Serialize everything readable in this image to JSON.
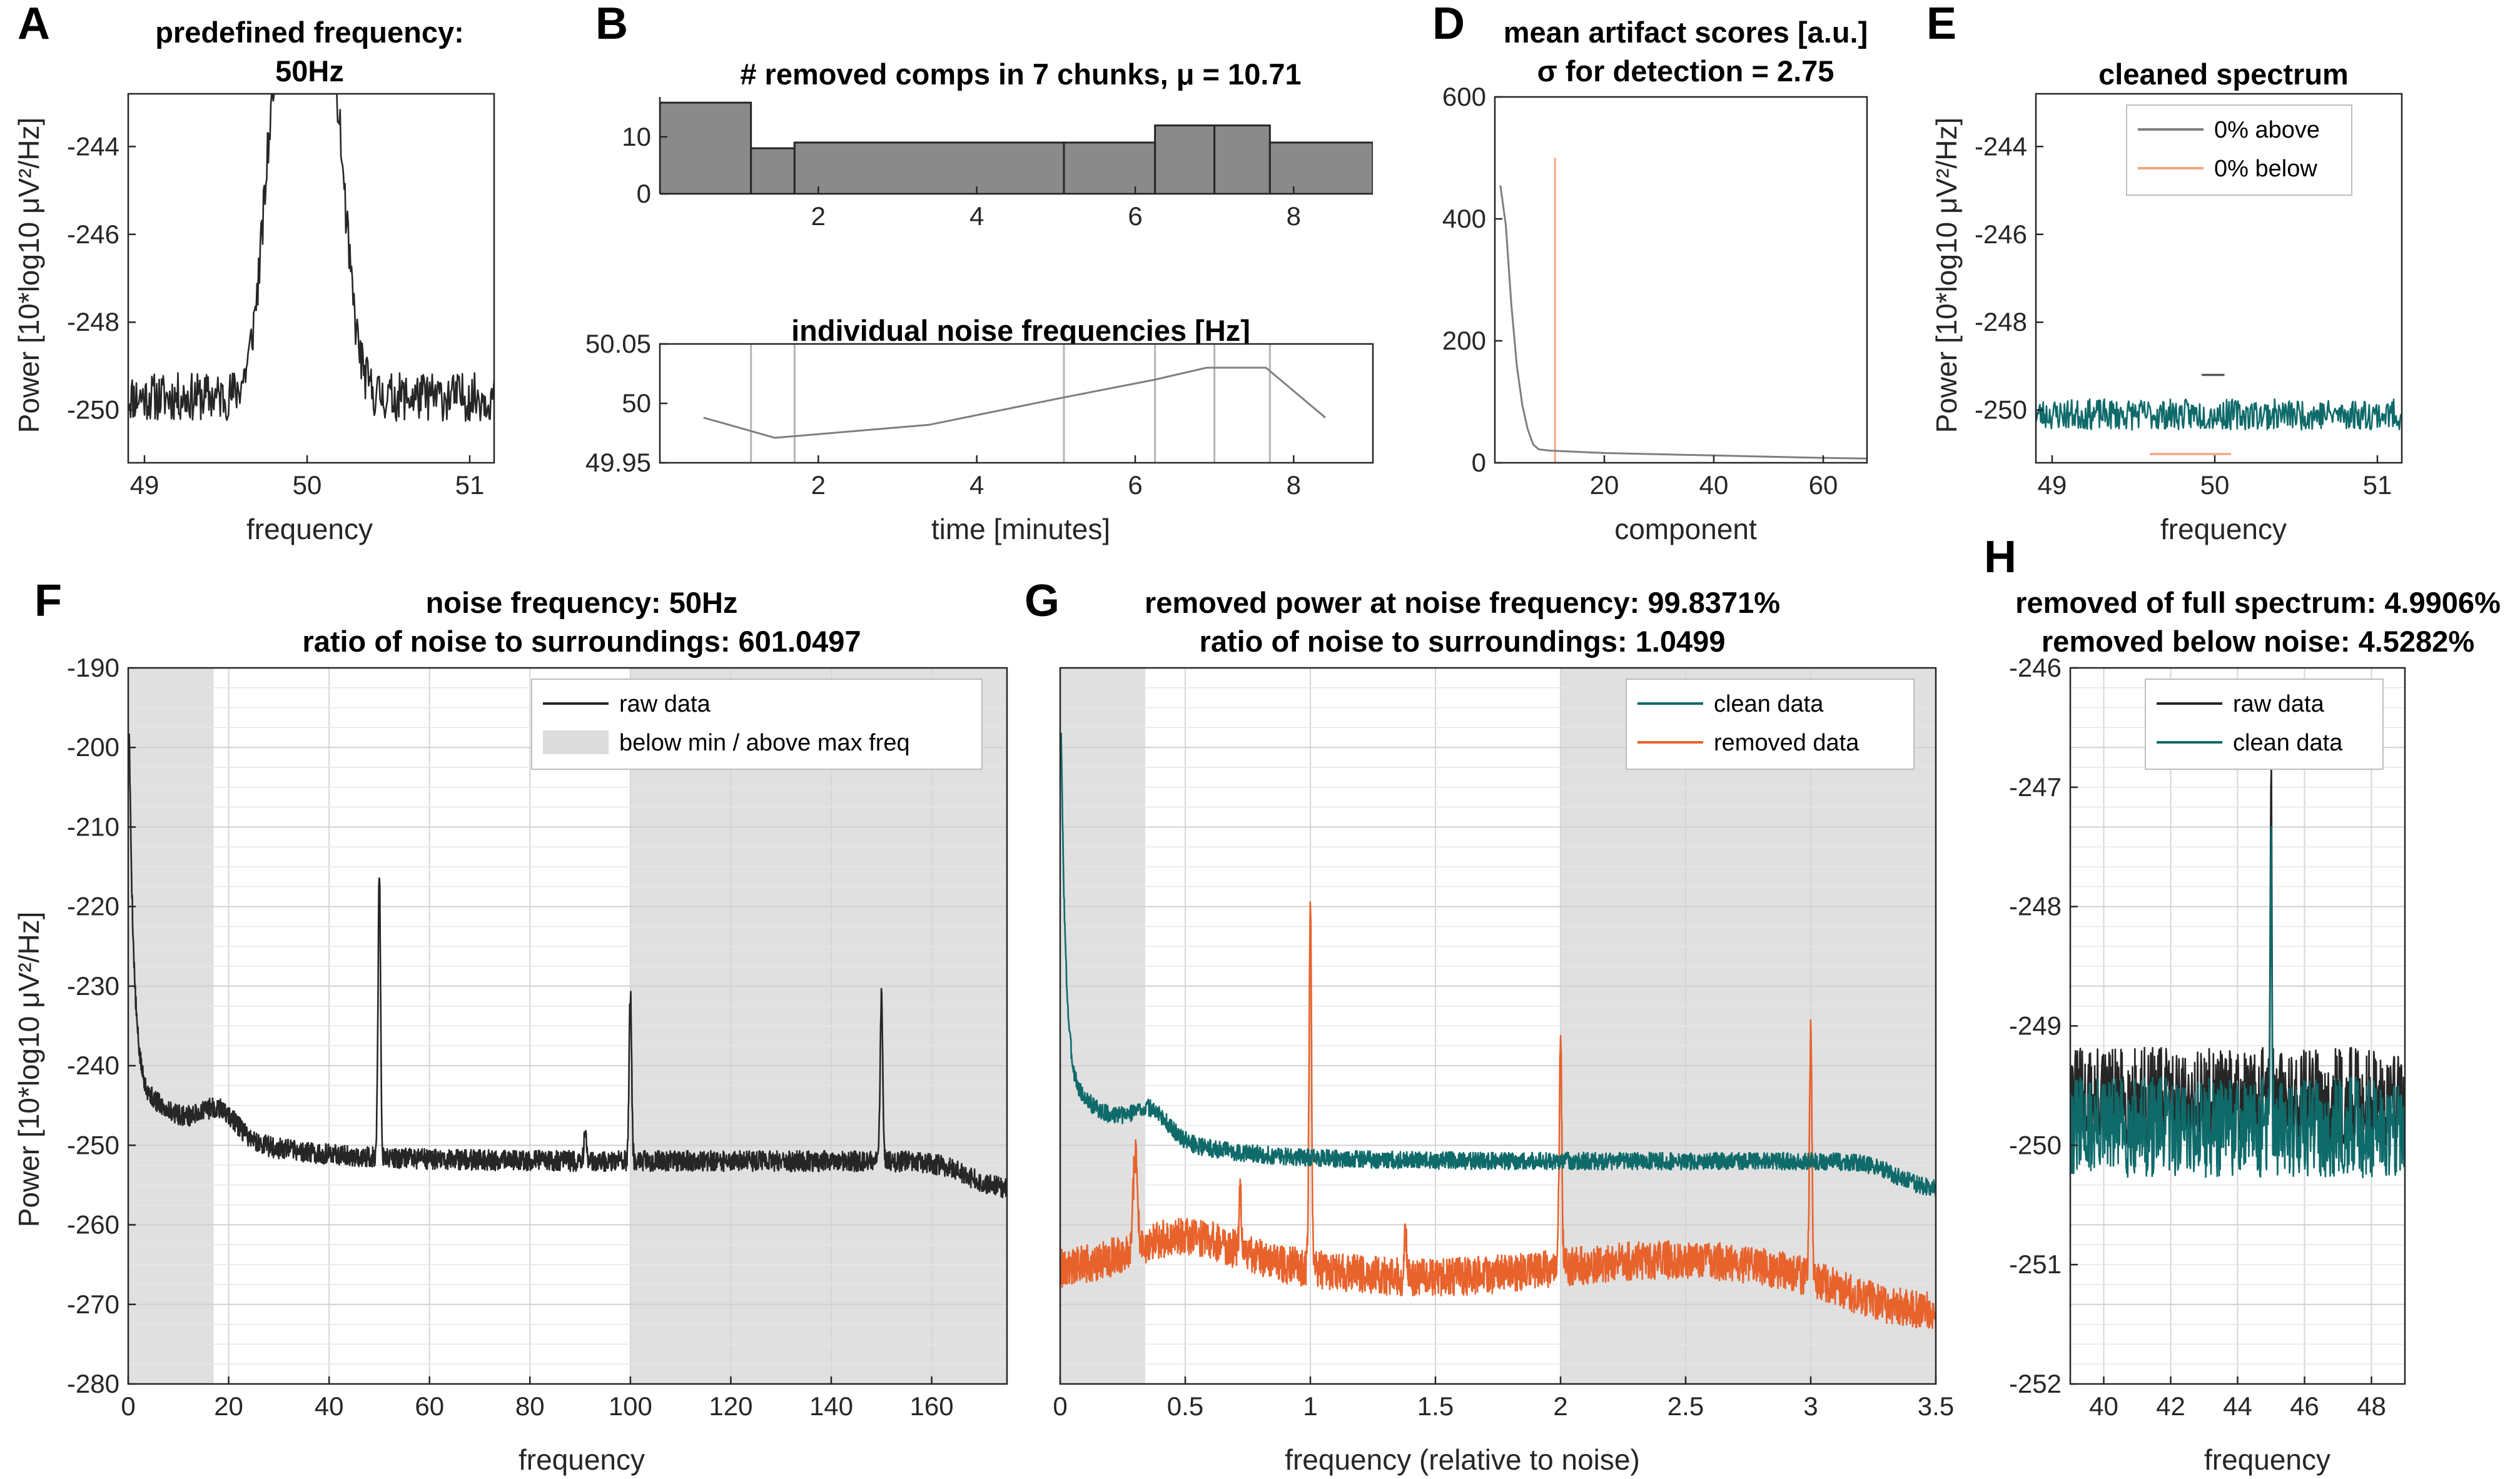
{
  "panels": [
    {
      "id": "A",
      "label": "A",
      "title": [
        "predefined frequency:",
        "50Hz"
      ],
      "xlabel": "frequency",
      "ylabel": "Power [10*log10 μV²/Hz]",
      "xlim": [
        48.9,
        51.15
      ],
      "ylim": [
        -251.2,
        -242.8
      ],
      "xticks": [
        49,
        50,
        51
      ],
      "yticks": [
        -244,
        -246,
        -248,
        -250
      ],
      "series": [
        {
          "kind": "spectrum",
          "color": "#262626",
          "x0": 48.9,
          "x1": 51.15,
          "n": 450,
          "base": -249.7,
          "noise": 0.55,
          "peaks": [
            {
              "c": 49.85,
              "h": 8.5,
              "w": 0.14
            },
            {
              "c": 50.12,
              "h": 8.5,
              "w": 0.14
            }
          ],
          "notch": {
            "c": 49.99,
            "w": 0.08
          },
          "seed": 11
        }
      ],
      "vlines": [],
      "shades": [],
      "grid": false
    },
    {
      "id": "B1",
      "label": "B",
      "title": [
        "# removed comps in 7 chunks, μ = 10.71"
      ],
      "xlim": [
        0,
        9
      ],
      "ylim": [
        0,
        17
      ],
      "xticks": [
        2,
        4,
        6,
        8
      ],
      "yticks": [
        0,
        10
      ],
      "bars": {
        "edges": [
          0,
          1.15,
          1.7,
          5.1,
          6.25,
          7.0,
          7.7,
          9.0
        ],
        "values": [
          16,
          8,
          9,
          9,
          12,
          12,
          9
        ],
        "face": "#8a8a8a",
        "edge": "#262626"
      }
    },
    {
      "id": "B2",
      "label": "",
      "title": [
        "individual noise frequencies [Hz]"
      ],
      "xlabel": "time [minutes]",
      "xlim": [
        0,
        9
      ],
      "ylim": [
        49.95,
        50.05
      ],
      "xticks": [
        2,
        4,
        6,
        8
      ],
      "yticks": [
        49.95,
        50,
        50.05
      ],
      "series": [
        {
          "kind": "line",
          "color": "#7f7f7f",
          "x": [
            0.55,
            1.45,
            3.4,
            5.1,
            6.25,
            6.9,
            7.65,
            8.4
          ],
          "y": [
            49.988,
            49.971,
            49.982,
            50.005,
            50.02,
            50.03,
            50.03,
            49.988
          ]
        }
      ],
      "vlines": [
        {
          "x": 1.15,
          "color": "#b5b5b5"
        },
        {
          "x": 1.7,
          "color": "#b5b5b5"
        },
        {
          "x": 5.1,
          "color": "#b5b5b5"
        },
        {
          "x": 6.25,
          "color": "#b5b5b5"
        },
        {
          "x": 7.0,
          "color": "#b5b5b5"
        },
        {
          "x": 7.7,
          "color": "#b5b5b5"
        }
      ]
    },
    {
      "id": "D",
      "label": "D",
      "title": [
        "mean artifact scores [a.u.]",
        "σ for detection = 2.75"
      ],
      "xlabel": "component",
      "xlim": [
        0,
        68
      ],
      "ylim": [
        0,
        600
      ],
      "xticks": [
        20,
        40,
        60
      ],
      "yticks": [
        0,
        200,
        400,
        600
      ],
      "series": [
        {
          "kind": "line",
          "color": "#7f7f7f",
          "x": [
            1,
            2,
            3,
            4,
            5,
            6,
            7,
            8,
            10,
            15,
            20,
            30,
            40,
            50,
            60,
            68
          ],
          "y": [
            455,
            390,
            260,
            160,
            95,
            55,
            30,
            22,
            20,
            18,
            16,
            14,
            12,
            10,
            8,
            7
          ]
        }
      ],
      "vlines": [
        {
          "x": 11,
          "color": "#f4a582",
          "y1": 500
        }
      ]
    },
    {
      "id": "E",
      "label": "E",
      "title": [
        "cleaned spectrum"
      ],
      "xlabel": "frequency",
      "ylabel": "Power [10*log10 μV²/Hz]",
      "xlim": [
        48.9,
        51.15
      ],
      "ylim": [
        -251.2,
        -242.8
      ],
      "xticks": [
        49,
        50,
        51
      ],
      "yticks": [
        -244,
        -246,
        -248,
        -250
      ],
      "series": [
        {
          "kind": "spectrum",
          "color": "#0f6a6a",
          "x0": 48.9,
          "x1": 51.15,
          "n": 450,
          "base": -250.1,
          "noise": 0.35,
          "peaks": [],
          "seed": 23
        }
      ],
      "hsegments": [
        {
          "x0": 49.6,
          "x1": 50.1,
          "y": -251.0,
          "color": "#f4a582"
        },
        {
          "x0": 49.92,
          "x1": 50.06,
          "y": -249.2,
          "color": "#555555"
        }
      ],
      "legend": [
        {
          "text": "0% above",
          "color": "#7f7f7f"
        },
        {
          "text": "0% below",
          "color": "#f4a582"
        }
      ]
    },
    {
      "id": "F",
      "label": "F",
      "title": [
        "noise frequency: 50Hz",
        "ratio of noise to surroundings: 601.0497"
      ],
      "xlabel": "frequency",
      "ylabel": "Power [10*log10 μV²/Hz]",
      "xlim": [
        0,
        175
      ],
      "ylim": [
        -280,
        -190
      ],
      "xticks": [
        0,
        20,
        40,
        60,
        80,
        100,
        120,
        140,
        160
      ],
      "yticks": [
        -190,
        -200,
        -210,
        -220,
        -230,
        -240,
        -250,
        -260,
        -270,
        -280
      ],
      "shades": [
        [
          0,
          17
        ],
        [
          100,
          175
        ]
      ],
      "series": [
        {
          "kind": "psd",
          "color": "#262626",
          "x0": 0.2,
          "x1": 175,
          "n": 2600,
          "noise": 1.3,
          "seed": 5,
          "curve": "raw",
          "xscale": 50,
          "peaks": [
            {
              "c": 50,
              "h": 36,
              "w": 0.35
            },
            {
              "c": 100,
              "h": 21,
              "w": 0.35
            },
            {
              "c": 150,
              "h": 21,
              "w": 0.35
            },
            {
              "c": 91,
              "h": 4,
              "w": 0.3
            }
          ]
        }
      ],
      "legend": [
        {
          "text": "raw data",
          "color": "#262626",
          "kind": "line"
        },
        {
          "text": "below min / above max freq",
          "color": "#dcdcdc",
          "kind": "patch"
        }
      ]
    },
    {
      "id": "G",
      "label": "G",
      "title": [
        "removed power at noise frequency: 99.8371%",
        "ratio of noise to surroundings: 1.0499"
      ],
      "xlabel": "frequency (relative to noise)",
      "xlim": [
        0,
        3.5
      ],
      "ylim": [
        -280,
        -190
      ],
      "xticks": [
        0,
        0.5,
        1,
        1.5,
        2,
        2.5,
        3,
        3.5
      ],
      "yticks": [],
      "shades": [
        [
          0,
          0.34
        ],
        [
          2,
          3.5
        ]
      ],
      "series": [
        {
          "kind": "psd",
          "color": "#e8622c",
          "x0": 0.004,
          "x1": 3.5,
          "n": 2600,
          "noise": 2.4,
          "seed": 9,
          "curve": "removed",
          "xscale": 1,
          "peaks": [
            {
              "c": 1,
              "h": 46,
              "w": 0.007
            },
            {
              "c": 2,
              "h": 30,
              "w": 0.007
            },
            {
              "c": 3,
              "h": 31,
              "w": 0.007
            },
            {
              "c": 0.3,
              "h": 12,
              "w": 0.012
            },
            {
              "c": 0.72,
              "h": 8,
              "w": 0.006
            },
            {
              "c": 1.38,
              "h": 6,
              "w": 0.006
            }
          ]
        },
        {
          "kind": "psd",
          "color": "#0f6a6a",
          "x0": 0.004,
          "x1": 3.5,
          "n": 2600,
          "noise": 1.1,
          "seed": 3,
          "curve": "clean",
          "xscale": 1,
          "peaks": []
        }
      ],
      "legend": [
        {
          "text": "clean data",
          "color": "#0f6a6a",
          "kind": "line"
        },
        {
          "text": "removed data",
          "color": "#e8622c",
          "kind": "line"
        }
      ]
    },
    {
      "id": "H",
      "label": "H",
      "title": [
        "removed of full spectrum: 4.9906%",
        "removed below noise: 4.5282%"
      ],
      "xlabel": "frequency",
      "xlim": [
        39,
        49
      ],
      "ylim": [
        -252,
        -246
      ],
      "xticks": [
        40,
        42,
        44,
        46,
        48
      ],
      "yticks": [
        -246,
        -247,
        -248,
        -249,
        -250,
        -251,
        -252
      ],
      "series": [
        {
          "kind": "spectrum",
          "color": "#262626",
          "x0": 39,
          "x1": 49,
          "n": 700,
          "base": -249.6,
          "noise": 0.42,
          "peaks": [
            {
              "c": 45,
              "h": 2.7,
              "w": 0.03
            }
          ],
          "seed": 31
        },
        {
          "kind": "spectrum",
          "color": "#0f6a6a",
          "x0": 39,
          "x1": 49,
          "n": 700,
          "base": -249.85,
          "noise": 0.42,
          "peaks": [
            {
              "c": 45,
              "h": 2.4,
              "w": 0.03
            }
          ],
          "seed": 31
        }
      ],
      "legend": [
        {
          "text": "raw data",
          "color": "#262626",
          "kind": "line"
        },
        {
          "text": "clean data",
          "color": "#0f6a6a",
          "kind": "line"
        }
      ]
    }
  ]
}
